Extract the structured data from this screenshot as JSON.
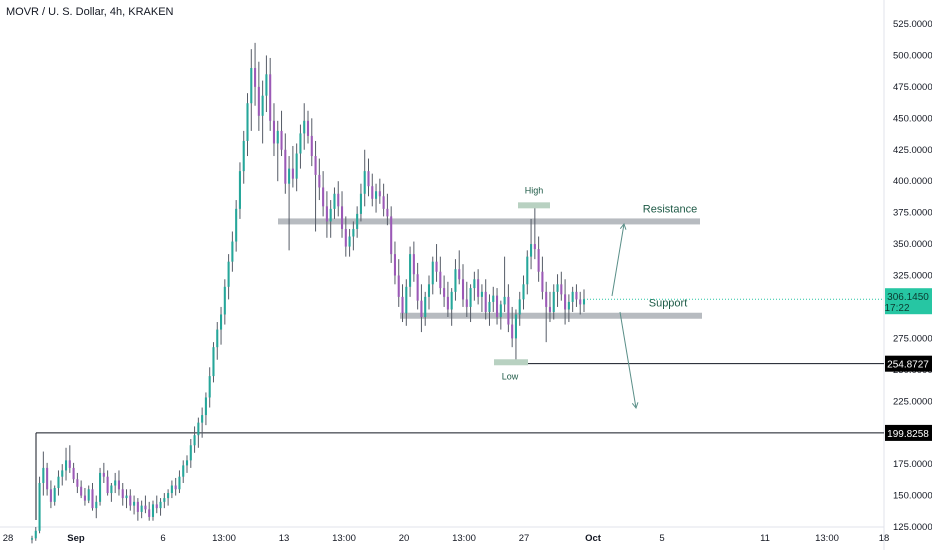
{
  "header": {
    "title": "MOVR / U. S. Dollar, 4h, KRAKEN"
  },
  "colors": {
    "up": "#26a69a",
    "down": "#9b59b6",
    "wick": "#555b66",
    "zone": "#b7bbc0",
    "marker": "#b8d1c1",
    "anno_text": "#1e5a46",
    "price_badge": "#26c6a3",
    "level_badge": "#000000",
    "arrow": "#5a8f88"
  },
  "chart_data": {
    "type": "candlestick",
    "symbol": "MOVR / U. S. Dollar",
    "interval": "4h",
    "exchange": "KRAKEN",
    "y_axis": {
      "ticks": [
        "525.0000",
        "500.0000",
        "475.0000",
        "450.0000",
        "425.0000",
        "400.0000",
        "375.0000",
        "350.0000",
        "325.0000",
        "300.0000",
        "275.0000",
        "250.0000",
        "225.0000",
        "200.0000",
        "175.0000",
        "150.0000",
        "125.0000"
      ],
      "range": [
        110,
        540
      ]
    },
    "x_axis": {
      "ticks": [
        "28",
        "Sep",
        "6",
        "13:00",
        "13",
        "13:00",
        "20",
        "13:00",
        "27",
        "Oct",
        "5",
        "11",
        "13:00",
        "18"
      ]
    },
    "current_price": {
      "value": "306.1450",
      "countdown": "17:22"
    },
    "horizontal_levels": [
      {
        "label": "254.8727",
        "value": 254.8727
      },
      {
        "label": "199.8258",
        "value": 199.8258
      }
    ],
    "zones": [
      {
        "name": "Resistance",
        "value": 368
      },
      {
        "name": "Support",
        "value": 293
      }
    ],
    "markers": [
      {
        "text": "High",
        "value": 380
      },
      {
        "text": "Low",
        "value": 256
      }
    ],
    "candles": [
      [
        115,
        118,
        112,
        116
      ],
      [
        116,
        125,
        114,
        122
      ],
      [
        122,
        165,
        120,
        160
      ],
      [
        160,
        185,
        150,
        172
      ],
      [
        172,
        176,
        150,
        155
      ],
      [
        155,
        162,
        140,
        145
      ],
      [
        145,
        158,
        142,
        156
      ],
      [
        156,
        170,
        150,
        165
      ],
      [
        165,
        175,
        158,
        170
      ],
      [
        170,
        188,
        162,
        178
      ],
      [
        178,
        190,
        168,
        172
      ],
      [
        172,
        176,
        160,
        163
      ],
      [
        163,
        168,
        152,
        157
      ],
      [
        157,
        162,
        148,
        150
      ],
      [
        150,
        156,
        142,
        146
      ],
      [
        146,
        158,
        144,
        155
      ],
      [
        155,
        160,
        138,
        140
      ],
      [
        140,
        150,
        132,
        145
      ],
      [
        145,
        172,
        142,
        168
      ],
      [
        168,
        176,
        160,
        165
      ],
      [
        165,
        170,
        150,
        152
      ],
      [
        152,
        160,
        145,
        158
      ],
      [
        158,
        168,
        152,
        162
      ],
      [
        162,
        170,
        150,
        155
      ],
      [
        155,
        160,
        142,
        148
      ],
      [
        148,
        155,
        140,
        150
      ],
      [
        150,
        155,
        138,
        142
      ],
      [
        142,
        150,
        135,
        145
      ],
      [
        145,
        148,
        130,
        137
      ],
      [
        137,
        146,
        132,
        142
      ],
      [
        142,
        150,
        136,
        139
      ],
      [
        139,
        145,
        130,
        133
      ],
      [
        133,
        146,
        130,
        143
      ],
      [
        143,
        150,
        136,
        140
      ],
      [
        140,
        148,
        134,
        145
      ],
      [
        145,
        152,
        140,
        148
      ],
      [
        148,
        155,
        142,
        152
      ],
      [
        152,
        162,
        148,
        158
      ],
      [
        158,
        164,
        150,
        155
      ],
      [
        155,
        170,
        152,
        165
      ],
      [
        165,
        178,
        160,
        174
      ],
      [
        174,
        182,
        168,
        178
      ],
      [
        178,
        195,
        172,
        190
      ],
      [
        190,
        205,
        184,
        198
      ],
      [
        198,
        212,
        188,
        208
      ],
      [
        208,
        220,
        196,
        214
      ],
      [
        214,
        232,
        206,
        228
      ],
      [
        228,
        252,
        220,
        245
      ],
      [
        245,
        272,
        240,
        268
      ],
      [
        268,
        288,
        258,
        282
      ],
      [
        282,
        300,
        270,
        294
      ],
      [
        294,
        322,
        286,
        316
      ],
      [
        316,
        342,
        306,
        336
      ],
      [
        336,
        360,
        328,
        352
      ],
      [
        352,
        385,
        344,
        378
      ],
      [
        378,
        415,
        370,
        408
      ],
      [
        408,
        440,
        398,
        432
      ],
      [
        432,
        470,
        420,
        462
      ],
      [
        462,
        505,
        440,
        490
      ],
      [
        490,
        510,
        460,
        475
      ],
      [
        475,
        495,
        440,
        452
      ],
      [
        452,
        480,
        430,
        468
      ],
      [
        468,
        500,
        455,
        485
      ],
      [
        485,
        498,
        440,
        448
      ],
      [
        448,
        462,
        420,
        430
      ],
      [
        430,
        448,
        400,
        440
      ],
      [
        440,
        456,
        420,
        425
      ],
      [
        425,
        438,
        390,
        398
      ],
      [
        398,
        420,
        345,
        410
      ],
      [
        410,
        428,
        395,
        402
      ],
      [
        402,
        430,
        392,
        422
      ],
      [
        422,
        445,
        410,
        438
      ],
      [
        438,
        462,
        425,
        448
      ],
      [
        448,
        456,
        430,
        436
      ],
      [
        436,
        450,
        412,
        420
      ],
      [
        420,
        432,
        360,
        405
      ],
      [
        405,
        418,
        385,
        395
      ],
      [
        395,
        408,
        372,
        380
      ],
      [
        380,
        392,
        355,
        368
      ],
      [
        368,
        385,
        355,
        378
      ],
      [
        378,
        395,
        370,
        390
      ],
      [
        390,
        400,
        372,
        380
      ],
      [
        380,
        392,
        355,
        362
      ],
      [
        362,
        372,
        340,
        348
      ],
      [
        348,
        362,
        340,
        356
      ],
      [
        356,
        368,
        345,
        362
      ],
      [
        362,
        380,
        355,
        374
      ],
      [
        374,
        398,
        368,
        390
      ],
      [
        390,
        425,
        380,
        408
      ],
      [
        408,
        418,
        388,
        396
      ],
      [
        396,
        406,
        380,
        386
      ],
      [
        386,
        398,
        375,
        392
      ],
      [
        392,
        402,
        382,
        388
      ],
      [
        388,
        398,
        372,
        378
      ],
      [
        378,
        390,
        365,
        372
      ],
      [
        372,
        380,
        335,
        342
      ],
      [
        342,
        352,
        318,
        325
      ],
      [
        325,
        338,
        300,
        308
      ],
      [
        308,
        318,
        288,
        295
      ],
      [
        295,
        322,
        285,
        316
      ],
      [
        316,
        348,
        308,
        342
      ],
      [
        342,
        352,
        320,
        326
      ],
      [
        326,
        335,
        298,
        305
      ],
      [
        305,
        318,
        280,
        292
      ],
      [
        292,
        312,
        285,
        308
      ],
      [
        308,
        325,
        298,
        318
      ],
      [
        318,
        340,
        310,
        336
      ],
      [
        336,
        350,
        320,
        328
      ],
      [
        328,
        340,
        310,
        315
      ],
      [
        315,
        325,
        300,
        308
      ],
      [
        308,
        320,
        292,
        298
      ],
      [
        298,
        315,
        285,
        312
      ],
      [
        312,
        338,
        305,
        330
      ],
      [
        330,
        345,
        318,
        322
      ],
      [
        322,
        334,
        300,
        306
      ],
      [
        306,
        320,
        292,
        300
      ],
      [
        300,
        318,
        288,
        315
      ],
      [
        315,
        328,
        305,
        322
      ],
      [
        322,
        330,
        302,
        308
      ],
      [
        308,
        318,
        296,
        312
      ],
      [
        312,
        322,
        290,
        296
      ],
      [
        296,
        310,
        285,
        304
      ],
      [
        304,
        316,
        296,
        309
      ],
      [
        309,
        315,
        286,
        292
      ],
      [
        292,
        305,
        282,
        302
      ],
      [
        302,
        340,
        296,
        308
      ],
      [
        308,
        318,
        280,
        286
      ],
      [
        286,
        300,
        268,
        275
      ],
      [
        275,
        298,
        255,
        294
      ],
      [
        294,
        312,
        285,
        306
      ],
      [
        306,
        325,
        298,
        318
      ],
      [
        318,
        345,
        310,
        340
      ],
      [
        340,
        370,
        330,
        350
      ],
      [
        350,
        380,
        338,
        346
      ],
      [
        346,
        356,
        320,
        328
      ],
      [
        328,
        340,
        306,
        312
      ],
      [
        312,
        320,
        272,
        300
      ],
      [
        300,
        312,
        288,
        296
      ],
      [
        296,
        318,
        290,
        312
      ],
      [
        312,
        326,
        300,
        318
      ],
      [
        318,
        328,
        305,
        310
      ],
      [
        310,
        322,
        286,
        298
      ],
      [
        298,
        310,
        288,
        304
      ],
      [
        304,
        316,
        296,
        312
      ],
      [
        312,
        318,
        300,
        306
      ],
      [
        306,
        312,
        294,
        302
      ],
      [
        302,
        314,
        296,
        306.145
      ]
    ]
  }
}
